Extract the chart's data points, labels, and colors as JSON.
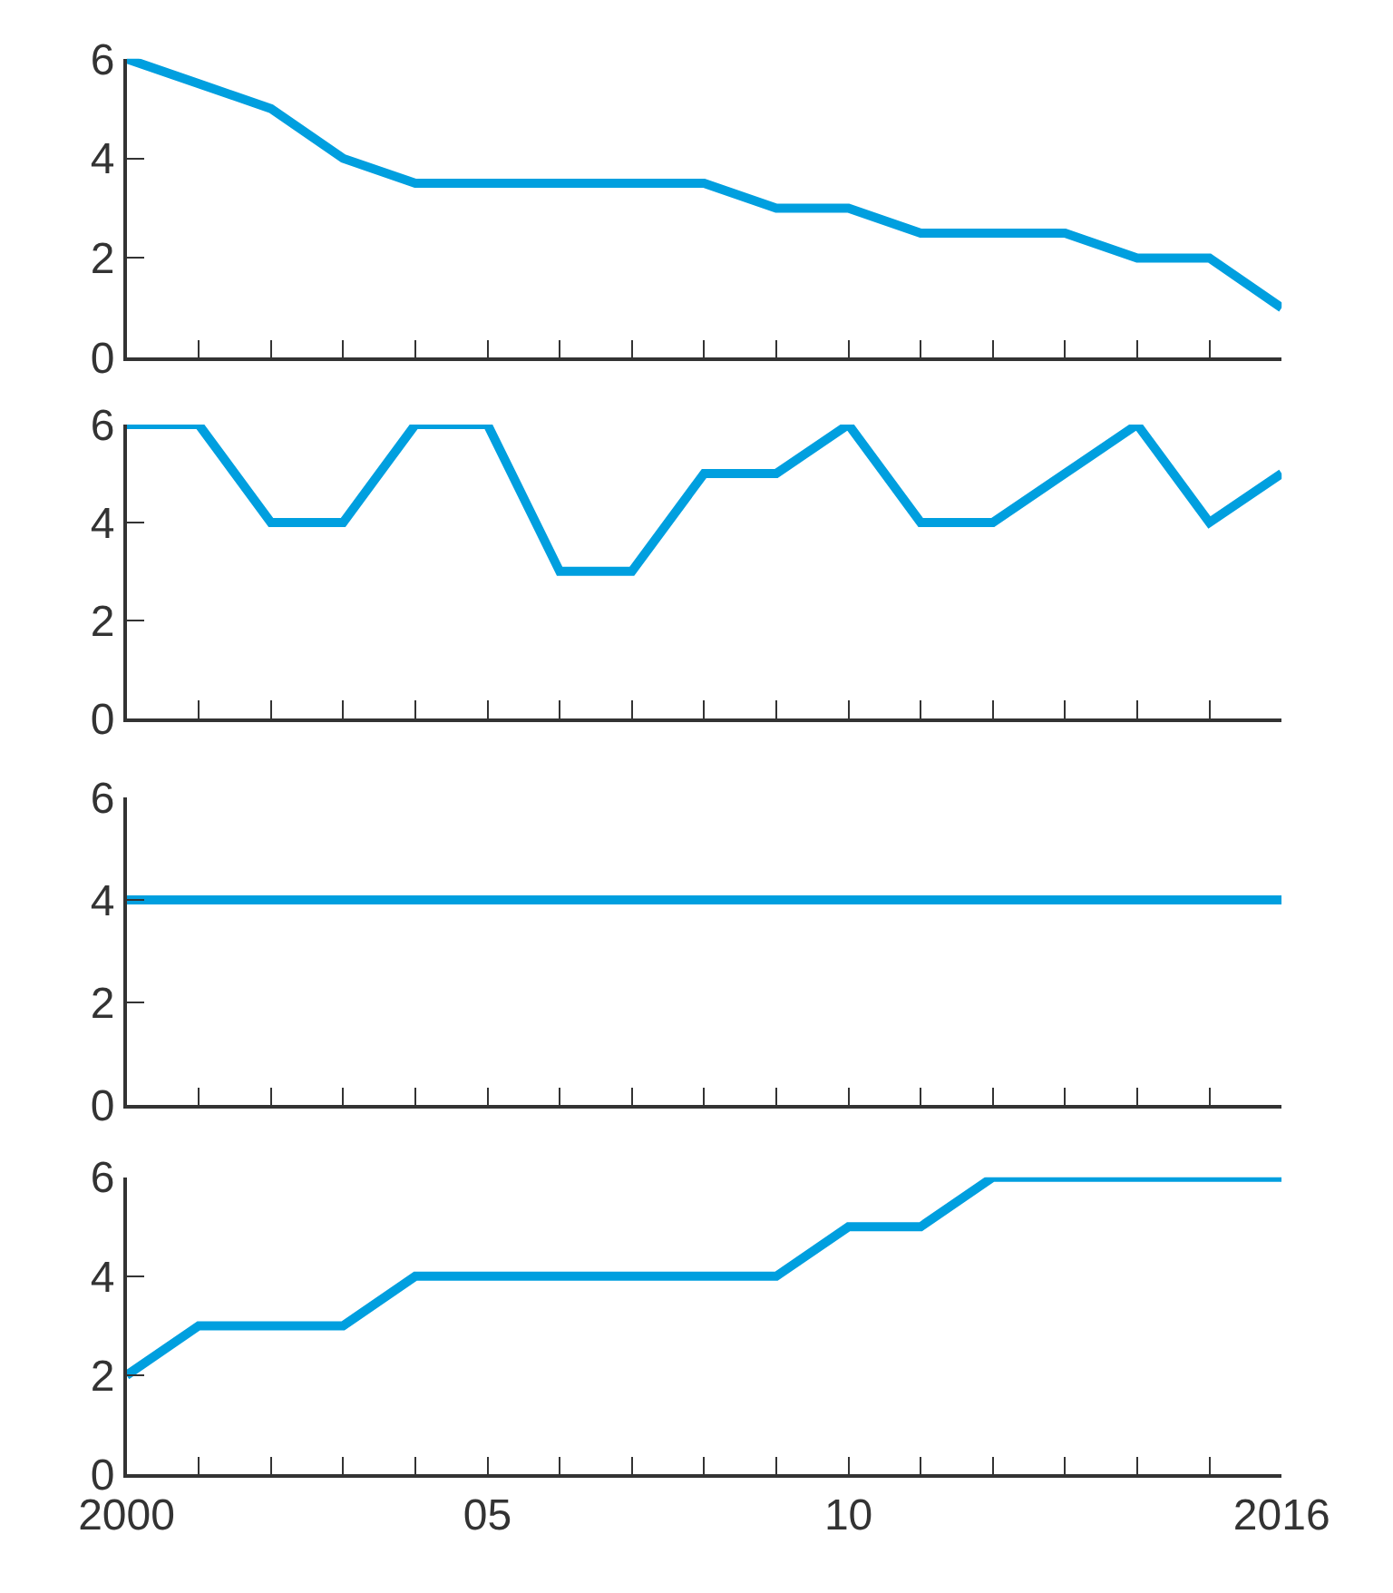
{
  "chart_data": [
    {
      "type": "line",
      "x": [
        2000,
        2001,
        2002,
        2003,
        2004,
        2005,
        2006,
        2007,
        2008,
        2009,
        2010,
        2011,
        2012,
        2013,
        2014,
        2015,
        2016
      ],
      "series": [
        {
          "color": "#009fdf",
          "values": [
            6,
            5.5,
            5,
            4,
            3.5,
            3.5,
            3.5,
            3.5,
            3.5,
            3,
            3,
            2.5,
            2.5,
            2.5,
            2,
            2,
            1
          ]
        }
      ],
      "xlim": [
        2000,
        2016
      ],
      "xticks": [
        {
          "value": 2000,
          "label": null
        },
        {
          "value": 2001,
          "label": null
        },
        {
          "value": 2002,
          "label": null
        },
        {
          "value": 2003,
          "label": null
        },
        {
          "value": 2004,
          "label": null
        },
        {
          "value": 2005,
          "label": null
        },
        {
          "value": 2006,
          "label": null
        },
        {
          "value": 2007,
          "label": null
        },
        {
          "value": 2008,
          "label": null
        },
        {
          "value": 2009,
          "label": null
        },
        {
          "value": 2010,
          "label": null
        },
        {
          "value": 2011,
          "label": null
        },
        {
          "value": 2012,
          "label": null
        },
        {
          "value": 2013,
          "label": null
        },
        {
          "value": 2014,
          "label": null
        },
        {
          "value": 2015,
          "label": null
        },
        {
          "value": 2016,
          "label": null
        }
      ],
      "ylim": [
        0,
        6
      ],
      "yticks": [
        0,
        2,
        4,
        6
      ],
      "tick_labels": "y"
    },
    {
      "type": "line",
      "x": [
        2000,
        2001,
        2002,
        2003,
        2004,
        2005,
        2006,
        2007,
        2008,
        2009,
        2010,
        2011,
        2012,
        2013,
        2014,
        2015,
        2016
      ],
      "series": [
        {
          "color": "#009fdf",
          "values": [
            6,
            6,
            4,
            4,
            6,
            6,
            3,
            3,
            5,
            5,
            6,
            4,
            4,
            5,
            6,
            4,
            5
          ]
        }
      ],
      "xlim": [
        2000,
        2016
      ],
      "xticks": [
        {
          "value": 2000,
          "label": null
        },
        {
          "value": 2001,
          "label": null
        },
        {
          "value": 2002,
          "label": null
        },
        {
          "value": 2003,
          "label": null
        },
        {
          "value": 2004,
          "label": null
        },
        {
          "value": 2005,
          "label": null
        },
        {
          "value": 2006,
          "label": null
        },
        {
          "value": 2007,
          "label": null
        },
        {
          "value": 2008,
          "label": null
        },
        {
          "value": 2009,
          "label": null
        },
        {
          "value": 2010,
          "label": null
        },
        {
          "value": 2011,
          "label": null
        },
        {
          "value": 2012,
          "label": null
        },
        {
          "value": 2013,
          "label": null
        },
        {
          "value": 2014,
          "label": null
        },
        {
          "value": 2015,
          "label": null
        },
        {
          "value": 2016,
          "label": null
        }
      ],
      "ylim": [
        0,
        6
      ],
      "yticks": [
        0,
        2,
        4,
        6
      ],
      "tick_labels": "y"
    },
    {
      "type": "line",
      "x": [
        2000,
        2001,
        2002,
        2003,
        2004,
        2005,
        2006,
        2007,
        2008,
        2009,
        2010,
        2011,
        2012,
        2013,
        2014,
        2015,
        2016
      ],
      "series": [
        {
          "color": "#009fdf",
          "values": [
            4,
            4,
            4,
            4,
            4,
            4,
            4,
            4,
            4,
            4,
            4,
            4,
            4,
            4,
            4,
            4,
            4
          ]
        }
      ],
      "xlim": [
        2000,
        2016
      ],
      "xticks": [
        {
          "value": 2000,
          "label": null
        },
        {
          "value": 2001,
          "label": null
        },
        {
          "value": 2002,
          "label": null
        },
        {
          "value": 2003,
          "label": null
        },
        {
          "value": 2004,
          "label": null
        },
        {
          "value": 2005,
          "label": null
        },
        {
          "value": 2006,
          "label": null
        },
        {
          "value": 2007,
          "label": null
        },
        {
          "value": 2008,
          "label": null
        },
        {
          "value": 2009,
          "label": null
        },
        {
          "value": 2010,
          "label": null
        },
        {
          "value": 2011,
          "label": null
        },
        {
          "value": 2012,
          "label": null
        },
        {
          "value": 2013,
          "label": null
        },
        {
          "value": 2014,
          "label": null
        },
        {
          "value": 2015,
          "label": null
        },
        {
          "value": 2016,
          "label": null
        }
      ],
      "ylim": [
        0,
        6
      ],
      "yticks": [
        0,
        2,
        4,
        6
      ],
      "tick_labels": "y"
    },
    {
      "type": "line",
      "x": [
        2000,
        2001,
        2002,
        2003,
        2004,
        2005,
        2006,
        2007,
        2008,
        2009,
        2010,
        2011,
        2012,
        2013,
        2014,
        2015,
        2016
      ],
      "series": [
        {
          "color": "#009fdf",
          "values": [
            2,
            3,
            3,
            3,
            4,
            4,
            4,
            4,
            4,
            4,
            5,
            5,
            6,
            6,
            6,
            6,
            6
          ]
        }
      ],
      "xlim": [
        2000,
        2016
      ],
      "xticks": [
        {
          "value": 2000,
          "label": "2000"
        },
        {
          "value": 2001,
          "label": null
        },
        {
          "value": 2002,
          "label": null
        },
        {
          "value": 2003,
          "label": null
        },
        {
          "value": 2004,
          "label": null
        },
        {
          "value": 2005,
          "label": "05"
        },
        {
          "value": 2006,
          "label": null
        },
        {
          "value": 2007,
          "label": null
        },
        {
          "value": 2008,
          "label": null
        },
        {
          "value": 2009,
          "label": null
        },
        {
          "value": 2010,
          "label": "10"
        },
        {
          "value": 2011,
          "label": null
        },
        {
          "value": 2012,
          "label": null
        },
        {
          "value": 2013,
          "label": null
        },
        {
          "value": 2014,
          "label": null
        },
        {
          "value": 2015,
          "label": null
        },
        {
          "value": 2016,
          "label": "2016"
        }
      ],
      "ylim": [
        0,
        6
      ],
      "yticks": [
        0,
        2,
        4,
        6
      ]
    }
  ]
}
